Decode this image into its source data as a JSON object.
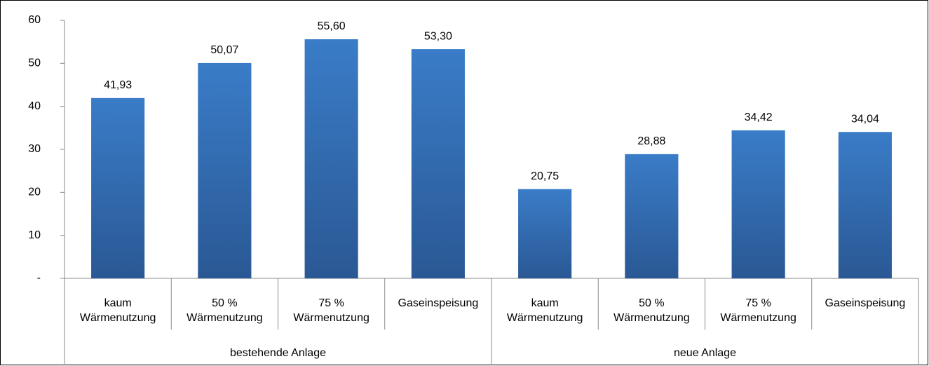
{
  "chart_data": {
    "type": "bar",
    "color": "#3574bd",
    "groups": [
      {
        "name": "bestehende Anlage",
        "categories": [
          "kaum Wärmenutzung",
          "50 % Wärmenutzung",
          "75 % Wärmenutzung",
          "Gaseinspeisung"
        ],
        "values": [
          41.93,
          50.07,
          55.6,
          53.3
        ],
        "value_labels": [
          "41,93",
          "50,07",
          "55,60",
          "53,30"
        ]
      },
      {
        "name": "neue Anlage",
        "categories": [
          "kaum Wärmenutzung",
          "50 % Wärmenutzung",
          "75 % Wärmenutzung",
          "Gaseinspeisung"
        ],
        "values": [
          20.75,
          28.88,
          34.42,
          34.04
        ],
        "value_labels": [
          "20,75",
          "28,88",
          "34,42",
          "34,04"
        ]
      }
    ],
    "ylim": [
      0,
      60
    ],
    "yticks": [
      {
        "value": 0,
        "label": "-"
      },
      10,
      20,
      30,
      40,
      50,
      60
    ],
    "grid": false
  }
}
